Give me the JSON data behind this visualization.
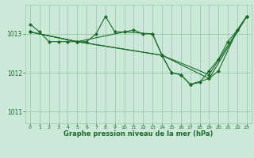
{
  "bg_color": "#cce8d8",
  "grid_color": "#99ccb0",
  "line_color": "#1a6b2a",
  "marker_color": "#1a6b2a",
  "xlabel": "Graphe pression niveau de la mer (hPa)",
  "xlabel_color": "#1a6b2a",
  "xlim": [
    -0.5,
    23.5
  ],
  "ylim": [
    1010.7,
    1013.75
  ],
  "yticks": [
    1011,
    1012,
    1013
  ],
  "xticks": [
    0,
    1,
    2,
    3,
    4,
    5,
    6,
    7,
    8,
    9,
    10,
    11,
    12,
    13,
    14,
    15,
    16,
    17,
    18,
    19,
    20,
    21,
    22,
    23
  ],
  "series": [
    {
      "x": [
        0,
        1,
        2,
        3,
        4,
        5,
        6,
        7,
        8,
        9,
        10,
        11,
        12,
        13,
        14,
        15,
        16,
        17,
        18,
        19,
        20,
        21,
        22,
        23
      ],
      "y": [
        1013.25,
        1013.05,
        1012.8,
        1012.8,
        1012.8,
        1012.8,
        1012.8,
        1013.0,
        1013.45,
        1013.05,
        1013.05,
        1013.1,
        1013.0,
        1013.0,
        1012.45,
        1012.0,
        1011.95,
        1011.7,
        1011.75,
        1012.05,
        1012.35,
        1012.8,
        1013.1,
        1013.45
      ]
    },
    {
      "x": [
        0,
        5,
        10,
        13,
        14,
        15,
        16,
        17,
        19,
        20,
        22,
        23
      ],
      "y": [
        1013.05,
        1012.8,
        1013.05,
        1013.0,
        1012.45,
        1012.0,
        1011.95,
        1011.7,
        1011.85,
        1012.05,
        1013.1,
        1013.45
      ]
    },
    {
      "x": [
        0,
        5,
        14,
        19,
        23
      ],
      "y": [
        1013.05,
        1012.8,
        1012.45,
        1011.85,
        1013.45
      ]
    },
    {
      "x": [
        0,
        5,
        14,
        19,
        23
      ],
      "y": [
        1013.05,
        1012.8,
        1012.45,
        1011.95,
        1013.45
      ]
    }
  ]
}
